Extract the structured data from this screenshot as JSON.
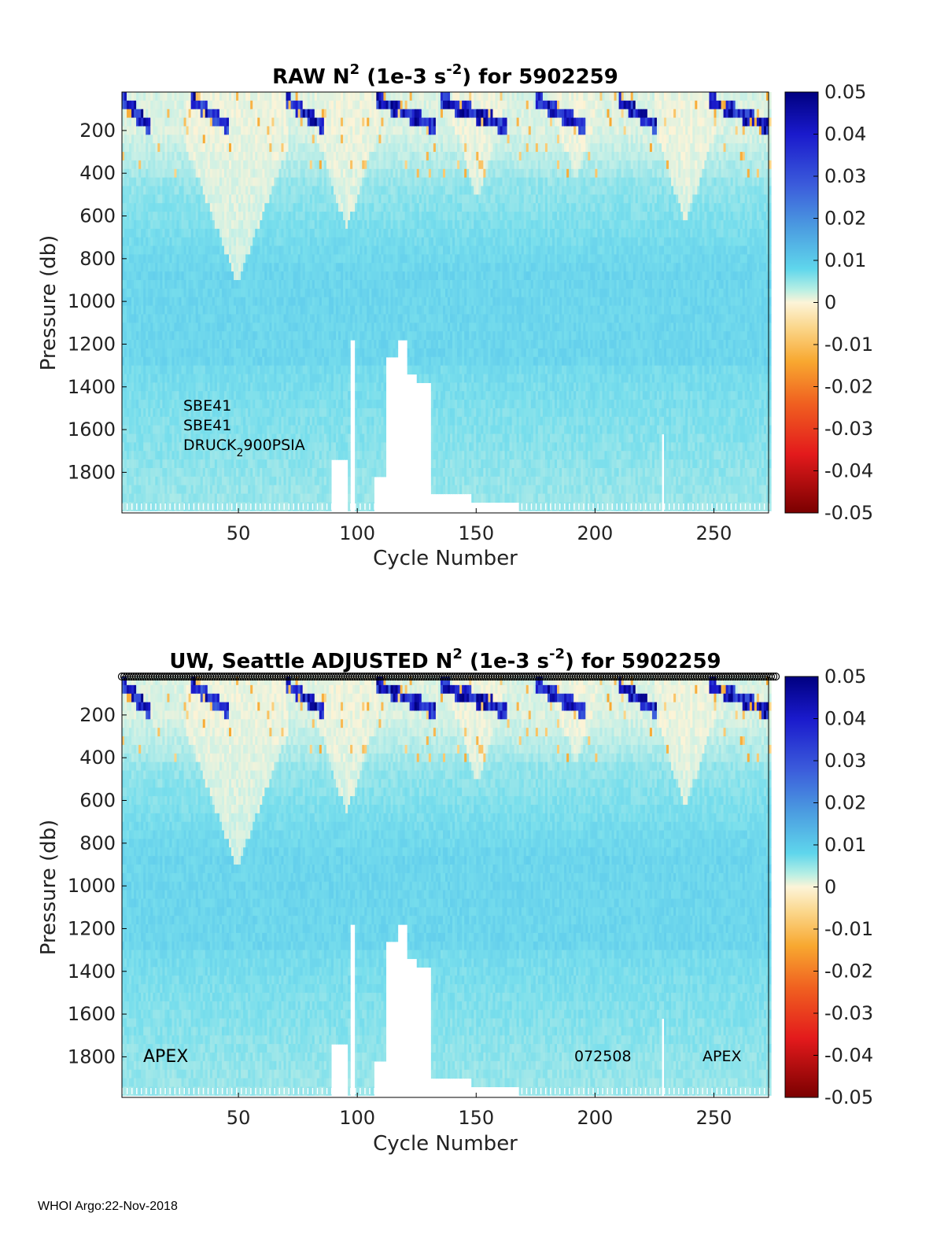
{
  "chart_data": [
    {
      "type": "heatmap",
      "title_parts": [
        "RAW N",
        "2",
        " (1e-3 s",
        "-2",
        ") for 5902259"
      ],
      "xlabel": "Cycle Number",
      "ylabel": "Pressure (db)",
      "xlim": [
        1,
        273
      ],
      "ylim": [
        1990,
        20
      ],
      "y_reversed": true,
      "x_ticks": [
        "50",
        "100",
        "150",
        "200",
        "250"
      ],
      "y_ticks": [
        "200",
        "400",
        "600",
        "800",
        "1000",
        "1200",
        "1400",
        "1600",
        "1800"
      ],
      "colorbar": {
        "range": [
          -0.05,
          0.05
        ],
        "ticks": [
          "0.05",
          "0.04",
          "0.03",
          "0.02",
          "0.01",
          "0",
          "-0.01",
          "-0.02",
          "-0.03",
          "-0.04",
          "-0.05"
        ]
      },
      "annotations": {
        "sensor_1": "SBE41",
        "sensor_2": "SBE41",
        "pressure_sensor_main": "DRUCK",
        "pressure_sensor_sub": "2",
        "pressure_sensor_rest": "900PSIA"
      },
      "profile_bottom_gaps": [
        {
          "x": [
            89,
            96
          ],
          "deepest_pressure": 1700
        },
        {
          "x": [
            97,
            99
          ],
          "deepest_pressure": 1150
        },
        {
          "x": [
            107,
            112
          ],
          "deepest_pressure": 1780
        },
        {
          "x": [
            112,
            117
          ],
          "deepest_pressure": 1250
        },
        {
          "x": [
            117,
            121
          ],
          "deepest_pressure": 1150
        },
        {
          "x": [
            121,
            125
          ],
          "deepest_pressure": 1300
        },
        {
          "x": [
            125,
            131
          ],
          "deepest_pressure": 1350
        },
        {
          "x": [
            131,
            137
          ],
          "deepest_pressure": 1880
        },
        {
          "x": [
            137,
            148
          ],
          "deepest_pressure": 1860
        },
        {
          "x": [
            148,
            168
          ],
          "deepest_pressure": 1900
        }
      ]
    },
    {
      "type": "heatmap",
      "title_parts": [
        "UW, Seattle  ADJUSTED N",
        "2",
        " (1e-3 s",
        "-2",
        ") for 5902259"
      ],
      "xlabel": "Cycle Number",
      "ylabel": "Pressure (db)",
      "xlim": [
        1,
        273
      ],
      "ylim": [
        1990,
        20
      ],
      "y_reversed": true,
      "x_ticks": [
        "50",
        "100",
        "150",
        "200",
        "250"
      ],
      "y_ticks": [
        "200",
        "400",
        "600",
        "800",
        "1000",
        "1200",
        "1400",
        "1600",
        "1800"
      ],
      "colorbar": {
        "range": [
          -0.05,
          0.05
        ],
        "ticks": [
          "0.05",
          "0.04",
          "0.03",
          "0.02",
          "0.01",
          "0",
          "-0.01",
          "-0.02",
          "-0.03",
          "-0.04",
          "-0.05"
        ]
      },
      "annotations": {
        "left": "APEX",
        "middle": "072508",
        "right": "APEX"
      },
      "qc_markers_row": true,
      "profile_bottom_gaps": [
        {
          "x": [
            89,
            96
          ],
          "deepest_pressure": 1700
        },
        {
          "x": [
            97,
            99
          ],
          "deepest_pressure": 1150
        },
        {
          "x": [
            107,
            112
          ],
          "deepest_pressure": 1780
        },
        {
          "x": [
            112,
            117
          ],
          "deepest_pressure": 1250
        },
        {
          "x": [
            117,
            121
          ],
          "deepest_pressure": 1150
        },
        {
          "x": [
            121,
            125
          ],
          "deepest_pressure": 1300
        },
        {
          "x": [
            125,
            131
          ],
          "deepest_pressure": 1350
        },
        {
          "x": [
            131,
            137
          ],
          "deepest_pressure": 1880
        },
        {
          "x": [
            137,
            148
          ],
          "deepest_pressure": 1860
        },
        {
          "x": [
            148,
            168
          ],
          "deepest_pressure": 1900
        }
      ]
    }
  ],
  "footer": {
    "text": "WHOI Argo:22-Nov-2018"
  }
}
